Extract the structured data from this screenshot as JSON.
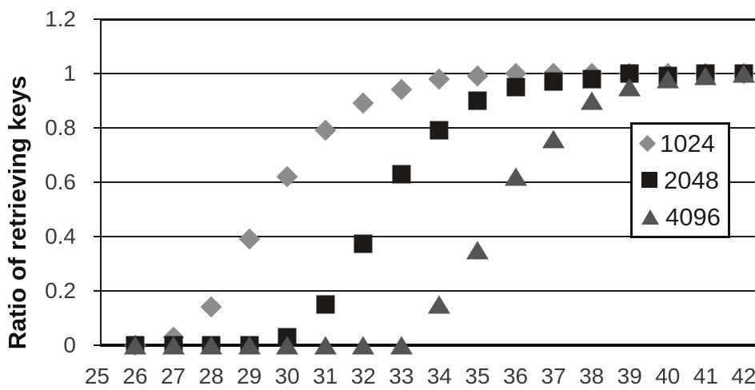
{
  "chart_data": {
    "type": "scatter",
    "title": "",
    "xlabel": "",
    "ylabel": "Ratio of retrieving keys",
    "ylim": [
      0,
      1.2
    ],
    "grid": "horizontal",
    "grid_color": "#1a1a1a",
    "text_color": "#3a3a3a",
    "legend_position": "right-middle",
    "yticks": [
      {
        "v": 0,
        "label": "0"
      },
      {
        "v": 0.2,
        "label": "0.2"
      },
      {
        "v": 0.4,
        "label": "0.4"
      },
      {
        "v": 0.6,
        "label": "0.6"
      },
      {
        "v": 0.8,
        "label": "0.8"
      },
      {
        "v": 1,
        "label": "1"
      },
      {
        "v": 1.2,
        "label": "1.2"
      }
    ],
    "xticks": [
      25,
      26,
      27,
      28,
      29,
      30,
      31,
      32,
      33,
      34,
      35,
      36,
      37,
      38,
      39,
      40,
      41,
      42
    ],
    "series": [
      {
        "name": "1024",
        "marker": "diamond",
        "color": "#8C8C8C",
        "x": [
          26,
          27,
          28,
          29,
          30,
          31,
          32,
          33,
          34,
          35,
          36,
          37,
          38,
          39,
          40,
          41,
          42
        ],
        "y": [
          0,
          0.03,
          0.14,
          0.39,
          0.62,
          0.79,
          0.89,
          0.94,
          0.98,
          0.99,
          1.0,
          1.0,
          1.0,
          1.0,
          1.0,
          1.0,
          1.0
        ]
      },
      {
        "name": "2048",
        "marker": "square",
        "color": "#1F1A17",
        "x": [
          26,
          27,
          28,
          29,
          30,
          31,
          32,
          33,
          34,
          35,
          36,
          37,
          38,
          39,
          40,
          41,
          42
        ],
        "y": [
          0,
          0,
          0,
          0,
          0.03,
          0.15,
          0.375,
          0.63,
          0.79,
          0.9,
          0.95,
          0.97,
          0.98,
          1.0,
          0.99,
          1.0,
          1.0
        ]
      },
      {
        "name": "4096",
        "marker": "triangle",
        "color": "#555555",
        "x": [
          26,
          27,
          28,
          29,
          30,
          31,
          32,
          33,
          34,
          35,
          36,
          37,
          38,
          39,
          40,
          41,
          42
        ],
        "y": [
          0,
          0,
          0,
          0,
          0,
          0,
          0,
          0,
          0.15,
          0.35,
          0.62,
          0.76,
          0.9,
          0.95,
          0.98,
          0.99,
          1.0
        ]
      }
    ]
  }
}
